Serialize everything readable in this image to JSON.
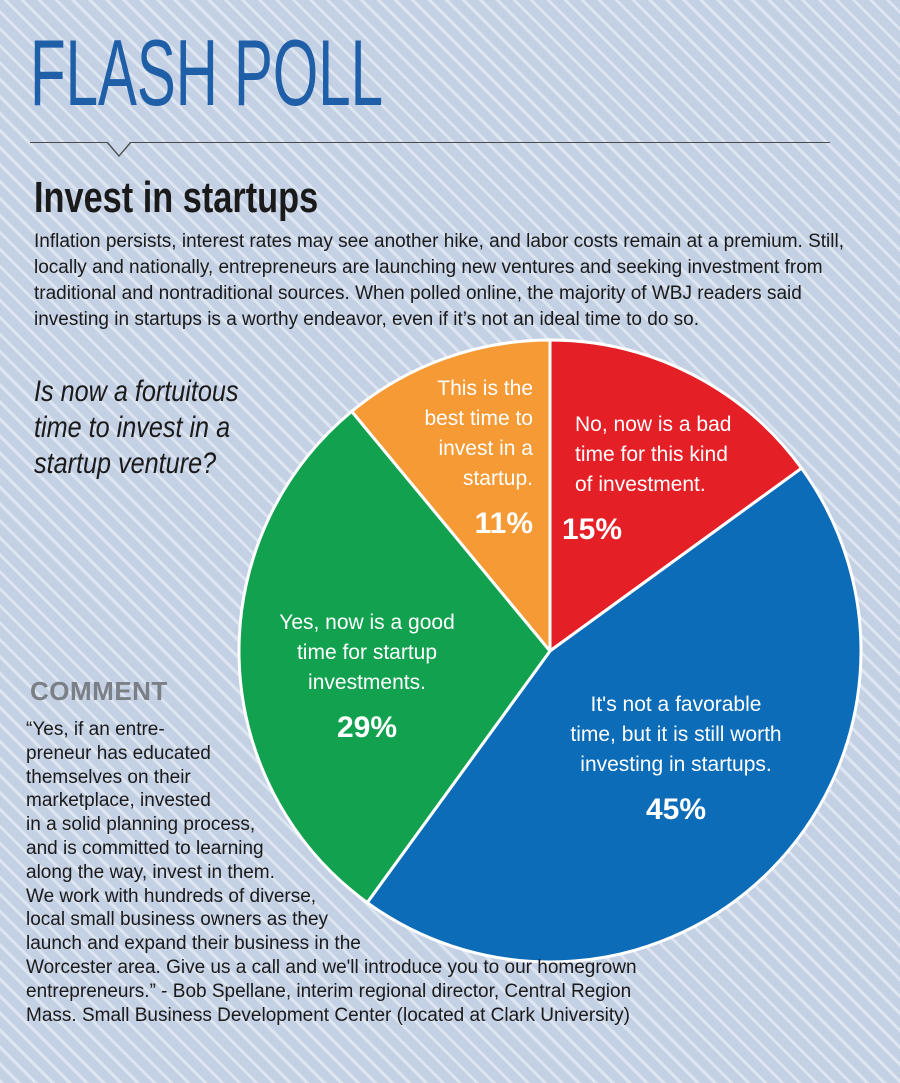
{
  "masthead": "FLASH POLL",
  "headline": "Invest in startups",
  "intro": "Inflation persists, interest rates may see another hike, and labor costs remain at a premium. Still, locally and nationally, entrepreneurs are launching new ventures and seeking investment from traditional and nontraditional sources. When polled online, the majority of WBJ readers said investing in startups is a worthy endeavor, even if it’s not an ideal time to do so.",
  "question": "Is now a fortuitous time to invest in a startup venture?",
  "comment": {
    "heading": "COMMENT",
    "lines": [
      "“Yes, if an entre-",
      "preneur has educated",
      "themselves on their",
      "marketplace, invested",
      "in a solid planning process,",
      "and is committed to learning",
      "along the way, invest in them.",
      "We work with hundreds of diverse,",
      "local small business owners as they",
      "launch and expand their business in the",
      "Worcester area. Give us a call and we'll introduce you to our homegrown",
      "entrepreneurs.” - Bob Spellane, interim regional director, Central Region",
      "Mass. Small Business Development Center (located at Clark University)"
    ]
  },
  "chart_data": {
    "type": "pie",
    "slices": [
      {
        "label_lines": [
          "No, now is a bad",
          "time for this kind",
          "of investment."
        ],
        "value": 15,
        "value_label": "15%",
        "color": "#e51f26"
      },
      {
        "label_lines": [
          "It's not a favorable",
          "time, but it is still worth",
          "investing in startups."
        ],
        "value": 45,
        "value_label": "45%",
        "color": "#0c6cb8"
      },
      {
        "label_lines": [
          "Yes, now is a good",
          "time for startup",
          "investments."
        ],
        "value": 29,
        "value_label": "29%",
        "color": "#12a24f"
      },
      {
        "label_lines": [
          "This is the",
          "best time to",
          "invest in a",
          "startup."
        ],
        "value": 11,
        "value_label": "11%",
        "color": "#f59a35"
      }
    ]
  }
}
